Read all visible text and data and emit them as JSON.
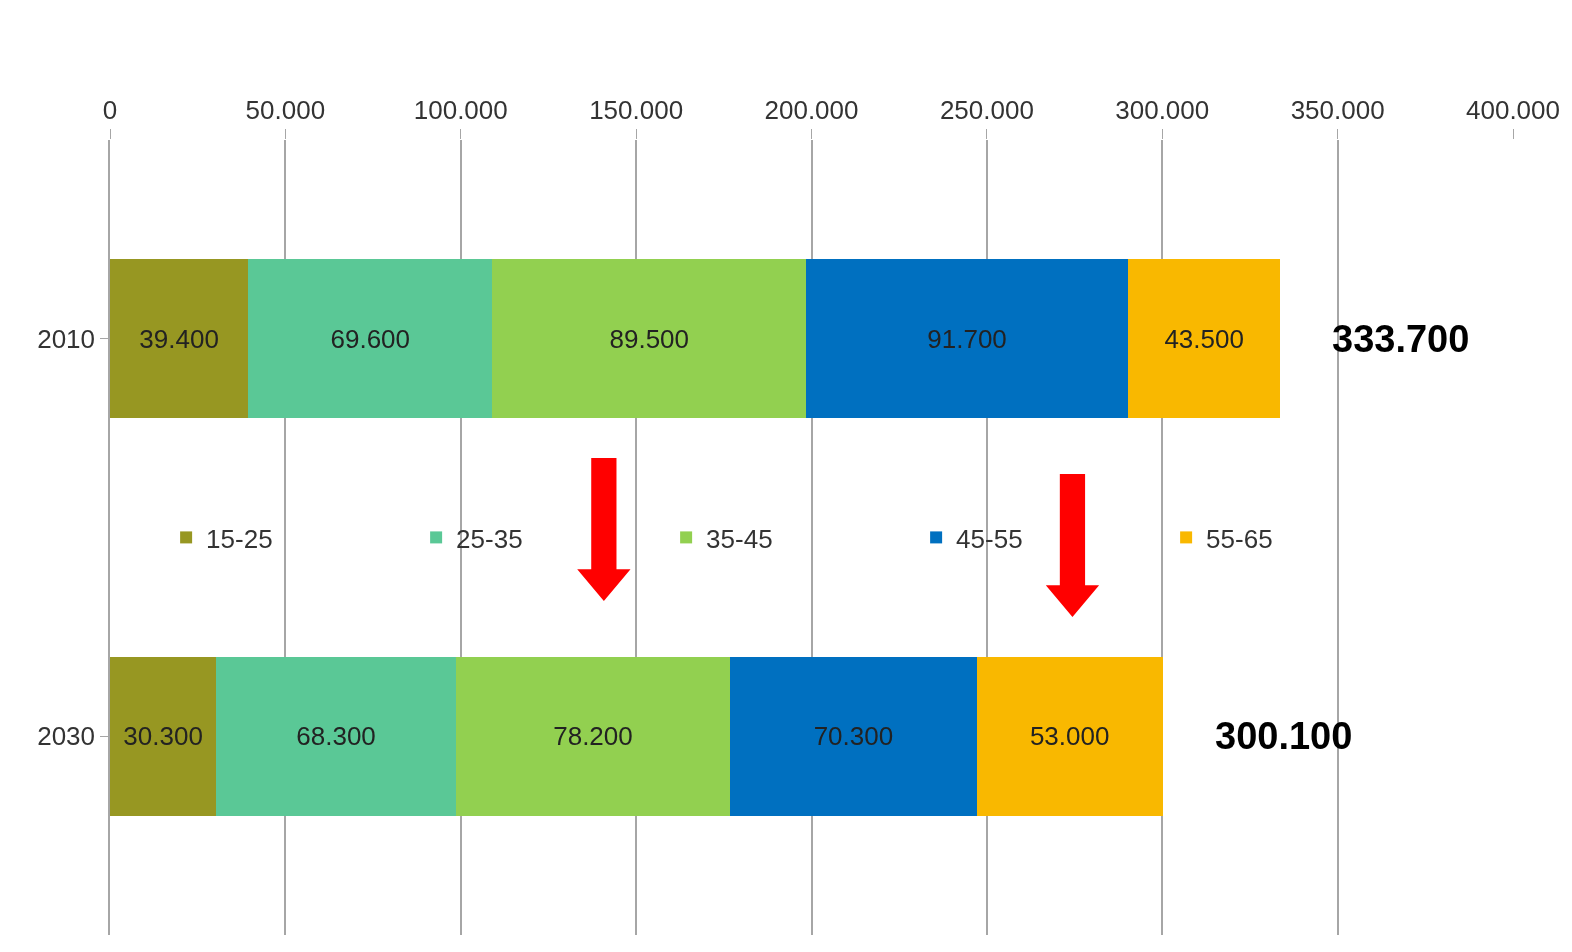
{
  "chart_data": {
    "type": "bar",
    "orientation": "horizontal",
    "stacked": true,
    "categories": [
      "2010",
      "2030"
    ],
    "series": [
      {
        "name": "15-25",
        "color": "#979722",
        "values": [
          39400,
          30300
        ],
        "value_labels": [
          "39.400",
          "30.300"
        ]
      },
      {
        "name": "25-35",
        "color": "#5ac896",
        "values": [
          69600,
          68300
        ],
        "value_labels": [
          "69.600",
          "68.300"
        ]
      },
      {
        "name": "35-45",
        "color": "#92d050",
        "values": [
          89500,
          78200
        ],
        "value_labels": [
          "89.500",
          "78.200"
        ]
      },
      {
        "name": "45-55",
        "color": "#0070c0",
        "values": [
          91700,
          70300
        ],
        "value_labels": [
          "91.700",
          "70.300"
        ]
      },
      {
        "name": "55-65",
        "color": "#f9b800",
        "values": [
          43500,
          53000
        ],
        "value_labels": [
          "43.500",
          "53.000"
        ]
      }
    ],
    "totals": [
      "333.700",
      "300.100"
    ],
    "xlim": [
      0,
      400000
    ],
    "xticks": [
      0,
      {
        "value": 50000,
        "label": "50.000"
      },
      {
        "value": 100000,
        "label": "100.000"
      },
      {
        "value": 150000,
        "label": "150.000"
      },
      {
        "value": 200000,
        "label": "200.000"
      },
      {
        "value": 250000,
        "label": "250.000"
      },
      {
        "value": 300000,
        "label": "300.000"
      },
      {
        "value": 350000,
        "label": "350.000"
      },
      {
        "value": 400000,
        "label": "400.000"
      }
    ],
    "grid": "x",
    "legend": "center"
  }
}
